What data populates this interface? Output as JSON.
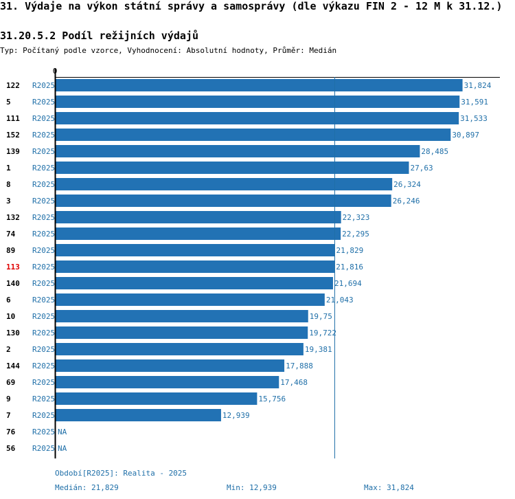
{
  "page": {
    "title": "31. Výdaje na výkon státní správy a samosprávy (dle výkazu FIN 2 - 12 M k 31.12.)",
    "subtitle": "31.20.5.2 Podíl režijních výdajů",
    "type_line": "Typ: Počítaný podle vzorce, Vyhodnocení: Absolutní hodnoty, Průměr: Medián"
  },
  "colors": {
    "bar": "#2272b4",
    "series_text": "#1f6fa8",
    "highlight": "#e00000",
    "median_line": "#1f6fa8"
  },
  "chart_data": {
    "type": "bar",
    "orientation": "horizontal",
    "axis_zero_label": "0",
    "xlim": [
      0,
      34.8
    ],
    "median": 21.829,
    "highlight_row": "113",
    "rows": [
      {
        "id": "122",
        "series": "R2025",
        "value": 31.824,
        "label": "31,824"
      },
      {
        "id": "5",
        "series": "R2025",
        "value": 31.591,
        "label": "31,591"
      },
      {
        "id": "111",
        "series": "R2025",
        "value": 31.533,
        "label": "31,533"
      },
      {
        "id": "152",
        "series": "R2025",
        "value": 30.897,
        "label": "30,897"
      },
      {
        "id": "139",
        "series": "R2025",
        "value": 28.485,
        "label": "28,485"
      },
      {
        "id": "1",
        "series": "R2025",
        "value": 27.63,
        "label": "27,63"
      },
      {
        "id": "8",
        "series": "R2025",
        "value": 26.324,
        "label": "26,324"
      },
      {
        "id": "3",
        "series": "R2025",
        "value": 26.246,
        "label": "26,246"
      },
      {
        "id": "132",
        "series": "R2025",
        "value": 22.323,
        "label": "22,323"
      },
      {
        "id": "74",
        "series": "R2025",
        "value": 22.295,
        "label": "22,295"
      },
      {
        "id": "89",
        "series": "R2025",
        "value": 21.829,
        "label": "21,829"
      },
      {
        "id": "113",
        "series": "R2025",
        "value": 21.816,
        "label": "21,816"
      },
      {
        "id": "140",
        "series": "R2025",
        "value": 21.694,
        "label": "21,694"
      },
      {
        "id": "6",
        "series": "R2025",
        "value": 21.043,
        "label": "21,043"
      },
      {
        "id": "10",
        "series": "R2025",
        "value": 19.75,
        "label": "19,75"
      },
      {
        "id": "130",
        "series": "R2025",
        "value": 19.722,
        "label": "19,722"
      },
      {
        "id": "2",
        "series": "R2025",
        "value": 19.381,
        "label": "19,381"
      },
      {
        "id": "144",
        "series": "R2025",
        "value": 17.888,
        "label": "17,888"
      },
      {
        "id": "69",
        "series": "R2025",
        "value": 17.468,
        "label": "17,468"
      },
      {
        "id": "9",
        "series": "R2025",
        "value": 15.756,
        "label": "15,756"
      },
      {
        "id": "7",
        "series": "R2025",
        "value": 12.939,
        "label": "12,939"
      },
      {
        "id": "76",
        "series": "R2025",
        "value": null,
        "label": "NA"
      },
      {
        "id": "56",
        "series": "R2025",
        "value": null,
        "label": "NA"
      }
    ]
  },
  "footer": {
    "period": "Období[R2025]: Realita - 2025",
    "median": "Medián: 21,829",
    "min": "Min: 12,939",
    "max": "Max: 31,824"
  }
}
